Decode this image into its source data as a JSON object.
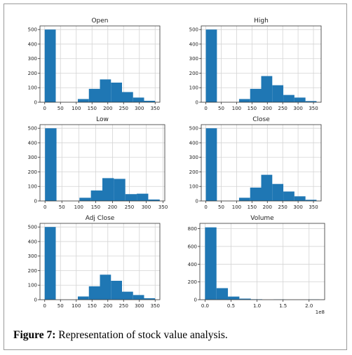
{
  "caption": {
    "label": "Figure 7:",
    "text": " Representation of stock value analysis."
  },
  "colors": {
    "bar": "#1f77b4"
  },
  "chart_data": [
    {
      "type": "bar",
      "title": "Open",
      "bins": [
        [
          0,
          35
        ],
        [
          35,
          70
        ],
        [
          70,
          105
        ],
        [
          105,
          140
        ],
        [
          140,
          175
        ],
        [
          175,
          210
        ],
        [
          210,
          245
        ],
        [
          245,
          280
        ],
        [
          280,
          315
        ],
        [
          315,
          350
        ]
      ],
      "values": [
        500,
        0,
        0,
        22,
        92,
        157,
        135,
        70,
        32,
        10
      ],
      "xlim": [
        -15,
        365
      ],
      "ylim": [
        0,
        525
      ],
      "xticks": [
        0,
        50,
        100,
        150,
        200,
        250,
        300,
        350
      ],
      "xtick_labels": [
        "0",
        "50",
        "100",
        "150",
        "200",
        "250",
        "300",
        "350"
      ],
      "yticks": [
        0,
        100,
        200,
        300,
        400,
        500
      ],
      "ytick_labels": [
        "0",
        "100",
        "200",
        "300",
        "400",
        "500"
      ],
      "grid": true
    },
    {
      "type": "bar",
      "title": "High",
      "bins": [
        [
          0,
          36
        ],
        [
          36,
          72
        ],
        [
          72,
          108
        ],
        [
          108,
          144
        ],
        [
          144,
          180
        ],
        [
          180,
          216
        ],
        [
          216,
          252
        ],
        [
          252,
          288
        ],
        [
          288,
          324
        ],
        [
          324,
          360
        ]
      ],
      "values": [
        500,
        0,
        0,
        22,
        92,
        180,
        117,
        50,
        32,
        8
      ],
      "xlim": [
        -15,
        375
      ],
      "ylim": [
        0,
        525
      ],
      "xticks": [
        0,
        50,
        100,
        150,
        200,
        250,
        300,
        350
      ],
      "xtick_labels": [
        "0",
        "50",
        "100",
        "150",
        "200",
        "250",
        "300",
        "350"
      ],
      "yticks": [
        0,
        100,
        200,
        300,
        400,
        500
      ],
      "ytick_labels": [
        "0",
        "100",
        "200",
        "300",
        "400",
        "500"
      ],
      "grid": true
    },
    {
      "type": "bar",
      "title": "Low",
      "bins": [
        [
          0,
          34
        ],
        [
          34,
          68
        ],
        [
          68,
          102
        ],
        [
          102,
          136
        ],
        [
          136,
          170
        ],
        [
          170,
          204
        ],
        [
          204,
          238
        ],
        [
          238,
          272
        ],
        [
          272,
          306
        ],
        [
          306,
          340
        ]
      ],
      "values": [
        500,
        0,
        0,
        22,
        72,
        157,
        152,
        47,
        50,
        10
      ],
      "xlim": [
        -15,
        355
      ],
      "ylim": [
        0,
        525
      ],
      "xticks": [
        0,
        50,
        100,
        150,
        200,
        250,
        300,
        350
      ],
      "xtick_labels": [
        "0",
        "50",
        "100",
        "150",
        "200",
        "250",
        "300",
        "350"
      ],
      "yticks": [
        0,
        100,
        200,
        300,
        400,
        500
      ],
      "ytick_labels": [
        "0",
        "100",
        "200",
        "300",
        "400",
        "500"
      ],
      "grid": true
    },
    {
      "type": "bar",
      "title": "Close",
      "bins": [
        [
          0,
          36
        ],
        [
          36,
          72
        ],
        [
          72,
          108
        ],
        [
          108,
          144
        ],
        [
          144,
          180
        ],
        [
          180,
          216
        ],
        [
          216,
          252
        ],
        [
          252,
          288
        ],
        [
          288,
          324
        ],
        [
          324,
          360
        ]
      ],
      "values": [
        500,
        0,
        0,
        22,
        92,
        180,
        117,
        65,
        32,
        8
      ],
      "xlim": [
        -15,
        375
      ],
      "ylim": [
        0,
        525
      ],
      "xticks": [
        0,
        50,
        100,
        150,
        200,
        250,
        300,
        350
      ],
      "xtick_labels": [
        "0",
        "50",
        "100",
        "150",
        "200",
        "250",
        "300",
        "350"
      ],
      "yticks": [
        0,
        100,
        200,
        300,
        400,
        500
      ],
      "ytick_labels": [
        "0",
        "100",
        "200",
        "300",
        "400",
        "500"
      ],
      "grid": true
    },
    {
      "type": "bar",
      "title": "Adj Close",
      "bins": [
        [
          0,
          35
        ],
        [
          35,
          70
        ],
        [
          70,
          105
        ],
        [
          105,
          140
        ],
        [
          140,
          175
        ],
        [
          175,
          210
        ],
        [
          210,
          245
        ],
        [
          245,
          280
        ],
        [
          280,
          315
        ],
        [
          315,
          350
        ]
      ],
      "values": [
        500,
        0,
        0,
        22,
        92,
        172,
        130,
        55,
        32,
        10
      ],
      "xlim": [
        -15,
        365
      ],
      "ylim": [
        0,
        525
      ],
      "xticks": [
        0,
        50,
        100,
        150,
        200,
        250,
        300,
        350
      ],
      "xtick_labels": [
        "0",
        "50",
        "100",
        "150",
        "200",
        "250",
        "300",
        "350"
      ],
      "yticks": [
        0,
        100,
        200,
        300,
        400,
        500
      ],
      "ytick_labels": [
        "0",
        "100",
        "200",
        "300",
        "400",
        "500"
      ],
      "grid": true
    },
    {
      "type": "bar",
      "title": "Volume",
      "bins": [
        [
          0,
          0.22
        ],
        [
          0.22,
          0.44
        ],
        [
          0.44,
          0.66
        ],
        [
          0.66,
          0.88
        ],
        [
          0.88,
          1.1
        ],
        [
          1.1,
          1.32
        ],
        [
          1.32,
          1.54
        ],
        [
          1.54,
          1.76
        ],
        [
          1.76,
          1.98
        ],
        [
          1.98,
          2.2
        ]
      ],
      "values": [
        815,
        130,
        35,
        12,
        5,
        0,
        3,
        0,
        0,
        3
      ],
      "xlim": [
        -0.1,
        2.3
      ],
      "ylim": [
        0,
        860
      ],
      "xticks": [
        0,
        0.5,
        1.0,
        1.5,
        2.0
      ],
      "xtick_labels": [
        "0.0",
        "0.5",
        "1.0",
        "1.5",
        "2.0"
      ],
      "yticks": [
        0,
        200,
        400,
        600,
        800
      ],
      "ytick_labels": [
        "0",
        "200",
        "400",
        "600",
        "800"
      ],
      "offset_label": "1e8",
      "grid": true
    }
  ]
}
